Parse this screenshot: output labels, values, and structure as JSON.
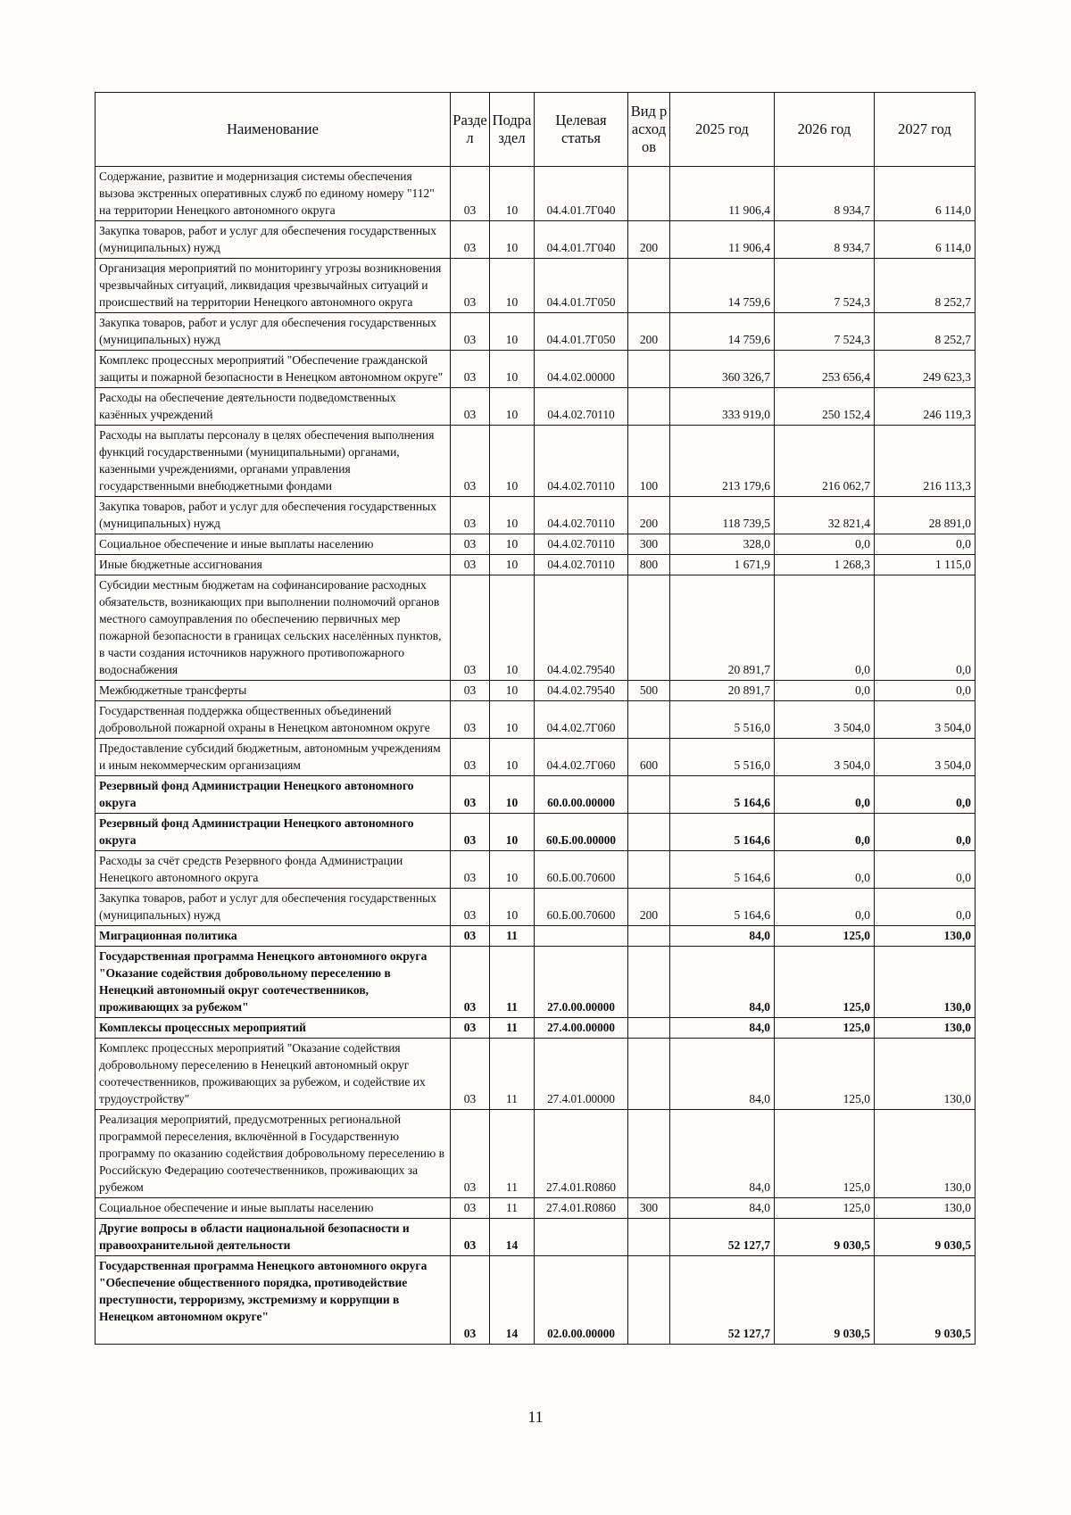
{
  "document": {
    "page_number": "11"
  },
  "table": {
    "headers": {
      "name": "Наименование",
      "rz": "Раздел",
      "pr": "Подраздел",
      "csr": "Целевая статья",
      "vr": "Вид расходов",
      "y2025": "2025 год",
      "y2026": "2026 год",
      "y2027": "2027 год"
    },
    "rows": [
      {
        "name": "Содержание, развитие и модернизация системы обеспечения вызова экстренных оперативных служб по единому номеру \"112\" на территории Ненецкого автономного округа",
        "rz": "03",
        "pr": "10",
        "csr": "04.4.01.7Г040",
        "vr": "",
        "y2025": "11 906,4",
        "y2026": "8 934,7",
        "y2027": "6 114,0",
        "bold": false,
        "gap": false
      },
      {
        "name": "Закупка товаров, работ и услуг для обеспечения государственных (муниципальных) нужд",
        "rz": "03",
        "pr": "10",
        "csr": "04.4.01.7Г040",
        "vr": "200",
        "y2025": "11 906,4",
        "y2026": "8 934,7",
        "y2027": "6 114,0",
        "bold": false,
        "gap": false
      },
      {
        "name": "Организация мероприятий по мониторингу угрозы возникновения чрезвычайных ситуаций, ликвидация чрезвычайных ситуаций и происшествий на территории Ненецкого автономного округа",
        "rz": "03",
        "pr": "10",
        "csr": "04.4.01.7Г050",
        "vr": "",
        "y2025": "14 759,6",
        "y2026": "7 524,3",
        "y2027": "8 252,7",
        "bold": false,
        "gap": false
      },
      {
        "name": "Закупка товаров, работ и услуг для обеспечения государственных (муниципальных) нужд",
        "rz": "03",
        "pr": "10",
        "csr": "04.4.01.7Г050",
        "vr": "200",
        "y2025": "14 759,6",
        "y2026": "7 524,3",
        "y2027": "8 252,7",
        "bold": false,
        "gap": false
      },
      {
        "name": "Комплекс процессных мероприятий \"Обеспечение гражданской защиты и пожарной безопасности в Ненецком автономном округе\"",
        "rz": "03",
        "pr": "10",
        "csr": "04.4.02.00000",
        "vr": "",
        "y2025": "360 326,7",
        "y2026": "253 656,4",
        "y2027": "249 623,3",
        "bold": false,
        "gap": false
      },
      {
        "name": "Расходы на обеспечение деятельности подведомственных казённых учреждений",
        "rz": "03",
        "pr": "10",
        "csr": "04.4.02.70110",
        "vr": "",
        "y2025": "333 919,0",
        "y2026": "250 152,4",
        "y2027": "246 119,3",
        "bold": false,
        "gap": false
      },
      {
        "name": "Расходы на выплаты персоналу в целях обеспечения выполнения функций государственными (муниципальными) органами, казенными учреждениями, органами управления государственными внебюджетными фондами",
        "rz": "03",
        "pr": "10",
        "csr": "04.4.02.70110",
        "vr": "100",
        "y2025": "213 179,6",
        "y2026": "216 062,7",
        "y2027": "216 113,3",
        "bold": false,
        "gap": false
      },
      {
        "name": "Закупка товаров, работ и услуг для обеспечения государственных (муниципальных) нужд",
        "rz": "03",
        "pr": "10",
        "csr": "04.4.02.70110",
        "vr": "200",
        "y2025": "118 739,5",
        "y2026": "32 821,4",
        "y2027": "28 891,0",
        "bold": false,
        "gap": false
      },
      {
        "name": "Социальное обеспечение и иные выплаты населению",
        "rz": "03",
        "pr": "10",
        "csr": "04.4.02.70110",
        "vr": "300",
        "y2025": "328,0",
        "y2026": "0,0",
        "y2027": "0,0",
        "bold": false,
        "gap": false
      },
      {
        "name": "Иные бюджетные ассигнования",
        "rz": "03",
        "pr": "10",
        "csr": "04.4.02.70110",
        "vr": "800",
        "y2025": "1 671,9",
        "y2026": "1 268,3",
        "y2027": "1 115,0",
        "bold": false,
        "gap": false
      },
      {
        "name": "Субсидии местным бюджетам на софинансирование расходных обязательств, возникающих при выполнении полномочий органов местного самоуправления по обеспечению первичных мер пожарной безопасности в границах сельских населённых пунктов, в части создания источников наружного противопожарного водоснабжения",
        "rz": "03",
        "pr": "10",
        "csr": "04.4.02.79540",
        "vr": "",
        "y2025": "20 891,7",
        "y2026": "0,0",
        "y2027": "0,0",
        "bold": false,
        "gap": false
      },
      {
        "name": "Межбюджетные трансферты",
        "rz": "03",
        "pr": "10",
        "csr": "04.4.02.79540",
        "vr": "500",
        "y2025": "20 891,7",
        "y2026": "0,0",
        "y2027": "0,0",
        "bold": false,
        "gap": false
      },
      {
        "name": "Государственная поддержка общественных объединений добровольной пожарной охраны в Ненецком автономном округе",
        "rz": "03",
        "pr": "10",
        "csr": "04.4.02.7Г060",
        "vr": "",
        "y2025": "5 516,0",
        "y2026": "3 504,0",
        "y2027": "3 504,0",
        "bold": false,
        "gap": false
      },
      {
        "name": "Предоставление субсидий бюджетным, автономным учреждениям и иным некоммерческим организациям",
        "rz": "03",
        "pr": "10",
        "csr": "04.4.02.7Г060",
        "vr": "600",
        "y2025": "5 516,0",
        "y2026": "3 504,0",
        "y2027": "3 504,0",
        "bold": false,
        "gap": false
      },
      {
        "name": "Резервный фонд Администрации Ненецкого автономного округа",
        "rz": "03",
        "pr": "10",
        "csr": "60.0.00.00000",
        "vr": "",
        "y2025": "5 164,6",
        "y2026": "0,0",
        "y2027": "0,0",
        "bold": true,
        "gap": false
      },
      {
        "name": "Резервный фонд Администрации Ненецкого автономного округа",
        "rz": "03",
        "pr": "10",
        "csr": "60.Б.00.00000",
        "vr": "",
        "y2025": "5 164,6",
        "y2026": "0,0",
        "y2027": "0,0",
        "bold": true,
        "gap": false
      },
      {
        "name": "Расходы за счёт средств Резервного фонда Администрации Ненецкого автономного округа",
        "rz": "03",
        "pr": "10",
        "csr": "60.Б.00.70600",
        "vr": "",
        "y2025": "5 164,6",
        "y2026": "0,0",
        "y2027": "0,0",
        "bold": false,
        "gap": false
      },
      {
        "name": "Закупка товаров, работ и услуг для обеспечения государственных (муниципальных) нужд",
        "rz": "03",
        "pr": "10",
        "csr": "60.Б.00.70600",
        "vr": "200",
        "y2025": "5 164,6",
        "y2026": "0,0",
        "y2027": "0,0",
        "bold": false,
        "gap": false
      },
      {
        "name": "Миграционная политика",
        "rz": "03",
        "pr": "11",
        "csr": "",
        "vr": "",
        "y2025": "84,0",
        "y2026": "125,0",
        "y2027": "130,0",
        "bold": true,
        "gap": false
      },
      {
        "name": "Государственная программа Ненецкого автономного округа \"Оказание содействия добровольному переселению в Ненецкий автономный округ соотечественников, проживающих за рубежом\"",
        "rz": "03",
        "pr": "11",
        "csr": "27.0.00.00000",
        "vr": "",
        "y2025": "84,0",
        "y2026": "125,0",
        "y2027": "130,0",
        "bold": true,
        "gap": false
      },
      {
        "name": "Комплексы процессных мероприятий",
        "rz": "03",
        "pr": "11",
        "csr": "27.4.00.00000",
        "vr": "",
        "y2025": "84,0",
        "y2026": "125,0",
        "y2027": "130,0",
        "bold": true,
        "gap": false
      },
      {
        "name": "Комплекс процессных мероприятий \"Оказание содействия добровольному переселению в Ненецкий автономный округ соотечественников, проживающих за рубежом, и содействие их трудоустройству\"",
        "rz": "03",
        "pr": "11",
        "csr": "27.4.01.00000",
        "vr": "",
        "y2025": "84,0",
        "y2026": "125,0",
        "y2027": "130,0",
        "bold": false,
        "gap": false
      },
      {
        "name": "Реализация мероприятий, предусмотренных региональной программой переселения, включённой в Государственную программу по оказанию содействия добровольному переселению в Российскую Федерацию соотечественников, проживающих за рубежом",
        "rz": "03",
        "pr": "11",
        "csr": "27.4.01.R0860",
        "vr": "",
        "y2025": "84,0",
        "y2026": "125,0",
        "y2027": "130,0",
        "bold": false,
        "gap": false
      },
      {
        "name": "Социальное обеспечение и иные выплаты населению",
        "rz": "03",
        "pr": "11",
        "csr": "27.4.01.R0860",
        "vr": "300",
        "y2025": "84,0",
        "y2026": "125,0",
        "y2027": "130,0",
        "bold": false,
        "gap": false
      },
      {
        "name": "Другие вопросы в области национальной безопасности и правоохранительной деятельности",
        "rz": "03",
        "pr": "14",
        "csr": "",
        "vr": "",
        "y2025": "52 127,7",
        "y2026": "9 030,5",
        "y2027": "9 030,5",
        "bold": true,
        "gap": false
      },
      {
        "name": "Государственная программа Ненецкого автономного округа \"Обеспечение общественного порядка, противодействие преступности, терроризму, экстремизму и коррупции в Ненецком автономном округе\"",
        "rz": "03",
        "pr": "14",
        "csr": "02.0.00.00000",
        "vr": "",
        "y2025": "52 127,7",
        "y2026": "9 030,5",
        "y2027": "9 030,5",
        "bold": true,
        "gap": true
      }
    ]
  }
}
